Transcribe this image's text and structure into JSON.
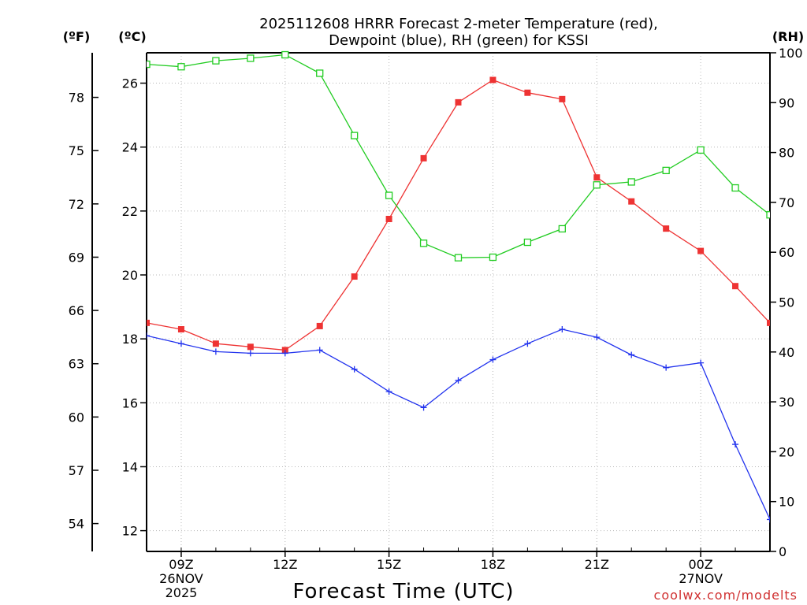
{
  "chart_data": {
    "type": "line",
    "title_lines": [
      "2025112608 HRRR Forecast 2-meter Temperature (red),",
      "Dewpoint (blue), RH (green) for KSSI"
    ],
    "xlabel": "Forecast Time (UTC)",
    "credit": "coolwx.com/modelts",
    "x_hours": [
      8,
      9,
      10,
      11,
      12,
      13,
      14,
      15,
      16,
      17,
      18,
      19,
      20,
      21,
      22,
      23,
      24,
      25,
      26
    ],
    "xlim": [
      8,
      26
    ],
    "x_ticks": [
      {
        "hour": 9,
        "lines": [
          "09Z",
          "26NOV",
          "2025"
        ]
      },
      {
        "hour": 12,
        "lines": [
          "12Z"
        ]
      },
      {
        "hour": 15,
        "lines": [
          "15Z"
        ]
      },
      {
        "hour": 18,
        "lines": [
          "18Z"
        ]
      },
      {
        "hour": 21,
        "lines": [
          "21Z"
        ]
      },
      {
        "hour": 24,
        "lines": [
          "00Z",
          "27NOV"
        ]
      }
    ],
    "left_axis_c": {
      "unit": "(ºC)",
      "ylim": [
        11.35,
        26.95
      ],
      "ticks": [
        12,
        14,
        16,
        18,
        20,
        22,
        24,
        26
      ]
    },
    "left_axis_f": {
      "unit": "(ºF)",
      "ticks": [
        54,
        57,
        60,
        63,
        66,
        69,
        72,
        75,
        78
      ]
    },
    "right_axis_rh": {
      "unit": "(RH)",
      "ylim": [
        0,
        100
      ],
      "ticks": [
        0,
        10,
        20,
        30,
        40,
        50,
        60,
        70,
        80,
        90,
        100
      ]
    },
    "series": [
      {
        "name": "2-meter Temperature",
        "axis": "c",
        "color": "#ee3333",
        "marker": "filled-square",
        "values": [
          18.5,
          18.3,
          17.85,
          17.75,
          17.65,
          18.4,
          19.95,
          21.75,
          23.65,
          25.4,
          26.1,
          25.7,
          25.5,
          23.05,
          22.3,
          21.45,
          20.75,
          19.65,
          18.5
        ]
      },
      {
        "name": "Dewpoint",
        "axis": "c",
        "color": "#2233ee",
        "marker": "plus",
        "values": [
          18.1,
          17.85,
          17.6,
          17.55,
          17.55,
          17.65,
          17.05,
          16.35,
          15.85,
          16.7,
          17.35,
          17.85,
          18.3,
          18.05,
          17.5,
          17.1,
          17.25,
          14.7,
          12.35
        ]
      },
      {
        "name": "Relative Humidity",
        "axis": "rh",
        "color": "#22cc22",
        "marker": "open-square",
        "values": [
          97.7,
          97.2,
          98.4,
          98.9,
          99.6,
          95.9,
          83.4,
          71.4,
          61.8,
          58.9,
          59.0,
          62.0,
          64.7,
          73.5,
          74.1,
          76.4,
          80.5,
          72.9,
          67.5
        ]
      }
    ]
  }
}
